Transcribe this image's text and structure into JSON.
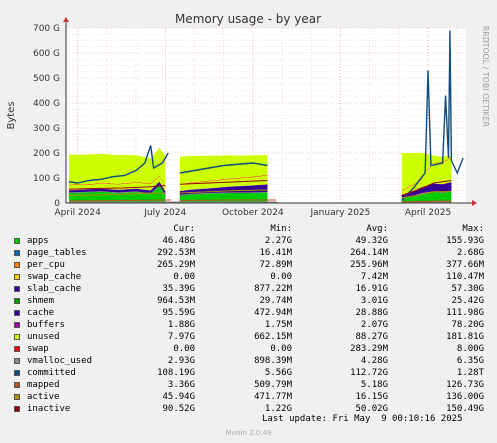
{
  "chart_data": {
    "type": "area",
    "title": "Memory usage - by year",
    "ylabel": "Bytes",
    "side_label": "RRDTOOL / TOBI OETIKER",
    "xlim": [
      2.6,
      16.3
    ],
    "ylim": [
      0,
      700
    ],
    "y_ticks": [
      {
        "v": 0,
        "label": "0"
      },
      {
        "v": 100,
        "label": "100 G"
      },
      {
        "v": 200,
        "label": "200 G"
      },
      {
        "v": 300,
        "label": "300 G"
      },
      {
        "v": 400,
        "label": "400 G"
      },
      {
        "v": 500,
        "label": "500 G"
      },
      {
        "v": 600,
        "label": "600 G"
      },
      {
        "v": 700,
        "label": "700 G"
      }
    ],
    "x_ticks": [
      {
        "at": 3,
        "label": "April 2024"
      },
      {
        "at": 6,
        "label": "July 2024"
      },
      {
        "at": 9,
        "label": "October 2024"
      },
      {
        "at": 12,
        "label": "January 2025"
      },
      {
        "at": 15,
        "label": "April 2025"
      }
    ],
    "grid": true,
    "series": [
      {
        "name": "apps",
        "kind": "stack",
        "color": "#00cc00",
        "cur": "46.48G",
        "min": "2.27G",
        "avg": "49.32G",
        "max": "155.93G",
        "points": [
          [
            2.7,
            40
          ],
          [
            3.2,
            42
          ],
          [
            3.8,
            45
          ],
          [
            4.4,
            40
          ],
          [
            5.0,
            44
          ],
          [
            5.5,
            36
          ],
          [
            5.8,
            70
          ],
          [
            6.0,
            30
          ],
          [
            6.3,
            null
          ],
          [
            6.5,
            30
          ],
          [
            6.9,
            35
          ],
          [
            7.5,
            38
          ],
          [
            8.2,
            40
          ],
          [
            8.9,
            40
          ],
          [
            9.5,
            42
          ],
          [
            9.8,
            null
          ],
          [
            14.0,
            null
          ],
          [
            14.1,
            20
          ],
          [
            14.5,
            28
          ],
          [
            14.8,
            38
          ],
          [
            15.2,
            45
          ],
          [
            15.5,
            40
          ],
          [
            15.8,
            46
          ]
        ]
      },
      {
        "name": "page_tables",
        "kind": "stack",
        "color": "#0066b3",
        "cur": "292.53M",
        "min": "16.41M",
        "avg": "264.14M",
        "max": "2.68G",
        "points": [
          [
            2.7,
            1
          ],
          [
            9.8,
            1
          ],
          [
            9.9,
            null
          ],
          [
            14.0,
            null
          ],
          [
            14.1,
            1
          ],
          [
            15.8,
            1
          ]
        ]
      },
      {
        "name": "per_cpu",
        "kind": "stack",
        "color": "#ff8000",
        "cur": "265.29M",
        "min": "72.89M",
        "avg": "255.96M",
        "max": "377.66M",
        "points": [
          [
            2.7,
            1
          ],
          [
            9.8,
            1
          ],
          [
            9.9,
            null
          ],
          [
            14.0,
            null
          ],
          [
            14.1,
            1
          ],
          [
            15.8,
            1
          ]
        ]
      },
      {
        "name": "swap_cache",
        "kind": "stack",
        "color": "#ffcc00",
        "cur": "0.00",
        "min": "0.00",
        "avg": "7.42M",
        "max": "110.47M",
        "points": [
          [
            2.7,
            0
          ],
          [
            15.8,
            0
          ]
        ]
      },
      {
        "name": "slab_cache",
        "kind": "stack",
        "color": "#330099",
        "cur": "35.39G",
        "min": "877.22M",
        "avg": "16.91G",
        "max": "57.30G",
        "points": [
          [
            2.7,
            8
          ],
          [
            3.5,
            10
          ],
          [
            4.5,
            10
          ],
          [
            5.5,
            12
          ],
          [
            6.0,
            14
          ],
          [
            6.3,
            null
          ],
          [
            6.5,
            15
          ],
          [
            7.5,
            18
          ],
          [
            8.5,
            25
          ],
          [
            9.5,
            30
          ],
          [
            9.8,
            null
          ],
          [
            14.0,
            null
          ],
          [
            14.1,
            10
          ],
          [
            14.6,
            20
          ],
          [
            15.2,
            30
          ],
          [
            15.8,
            35
          ]
        ]
      },
      {
        "name": "shmem",
        "kind": "stack",
        "color": "#990099",
        "cur": "964.53M",
        "min": "29.74M",
        "avg": "3.01G",
        "max": "25.42G",
        "points": [
          [
            2.7,
            1
          ],
          [
            9.8,
            1
          ],
          [
            9.9,
            null
          ],
          [
            14.0,
            null
          ],
          [
            14.1,
            1
          ],
          [
            15.8,
            1
          ]
        ]
      },
      {
        "name": "cache",
        "kind": "stack",
        "color": "#ccff00",
        "cur": "95.59G",
        "min": "472.94M",
        "avg": "28.88G",
        "max": "111.98G",
        "points": [
          [
            2.7,
            20
          ],
          [
            3.5,
            18
          ],
          [
            4.5,
            22
          ],
          [
            5.5,
            25
          ],
          [
            6.0,
            18
          ],
          [
            6.3,
            null
          ],
          [
            6.5,
            25
          ],
          [
            7.5,
            28
          ],
          [
            8.5,
            30
          ],
          [
            9.5,
            35
          ],
          [
            9.8,
            null
          ],
          [
            14.0,
            null
          ],
          [
            14.1,
            15
          ],
          [
            14.6,
            25
          ],
          [
            15.2,
            80
          ],
          [
            15.8,
            95
          ]
        ]
      },
      {
        "name": "buffers",
        "kind": "stack",
        "color": "#ff0000",
        "cur": "1.88G",
        "min": "1.75M",
        "avg": "2.07G",
        "max": "78.20G",
        "points": [
          [
            2.7,
            2
          ],
          [
            15.8,
            2
          ]
        ]
      },
      {
        "name": "unused",
        "kind": "stack",
        "color": "#ccff00",
        "cur": "7.97G",
        "min": "662.15M",
        "avg": "88.27G",
        "max": "181.81G",
        "points": [
          [
            2.7,
            120
          ],
          [
            3.5,
            118
          ],
          [
            4.5,
            115
          ],
          [
            5.5,
            100
          ],
          [
            6.0,
            120
          ],
          [
            6.3,
            null
          ],
          [
            6.5,
            110
          ],
          [
            7.5,
            100
          ],
          [
            8.5,
            90
          ],
          [
            9.5,
            80
          ],
          [
            9.8,
            null
          ],
          [
            14.0,
            null
          ],
          [
            14.1,
            150
          ],
          [
            14.6,
            120
          ],
          [
            15.2,
            30
          ],
          [
            15.8,
            10
          ]
        ]
      },
      {
        "name": "swap",
        "kind": "stack",
        "color": "#666666",
        "cur": "0.00",
        "min": "0.00",
        "avg": "283.29M",
        "max": "8.00G",
        "points": [
          [
            2.7,
            0
          ],
          [
            15.8,
            0
          ]
        ]
      },
      {
        "name": "vmalloc_used",
        "kind": "line",
        "color": "#888888",
        "cur": "2.93G",
        "min": "898.39M",
        "avg": "4.28G",
        "max": "6.35G",
        "points": [
          [
            2.7,
            4
          ],
          [
            9.8,
            4
          ],
          [
            9.9,
            null
          ],
          [
            14.0,
            null
          ],
          [
            14.1,
            4
          ],
          [
            15.8,
            4
          ]
        ]
      },
      {
        "name": "committed",
        "kind": "line",
        "color": "#0f4c81",
        "cur": "108.19G",
        "min": "5.56G",
        "avg": "112.72G",
        "max": "1.28T",
        "points": [
          [
            2.7,
            85
          ],
          [
            3.0,
            80
          ],
          [
            3.4,
            90
          ],
          [
            3.8,
            95
          ],
          [
            4.2,
            105
          ],
          [
            4.6,
            110
          ],
          [
            5.0,
            130
          ],
          [
            5.3,
            160
          ],
          [
            5.5,
            230
          ],
          [
            5.6,
            140
          ],
          [
            5.9,
            160
          ],
          [
            6.1,
            200
          ],
          [
            6.3,
            null
          ],
          [
            6.5,
            120
          ],
          [
            7.0,
            130
          ],
          [
            7.5,
            140
          ],
          [
            8.0,
            150
          ],
          [
            8.5,
            155
          ],
          [
            9.0,
            160
          ],
          [
            9.5,
            150
          ],
          [
            9.8,
            null
          ],
          [
            14.0,
            null
          ],
          [
            14.1,
            10
          ],
          [
            14.5,
            60
          ],
          [
            14.9,
            120
          ],
          [
            15.0,
            530
          ],
          [
            15.1,
            150
          ],
          [
            15.5,
            160
          ],
          [
            15.6,
            430
          ],
          [
            15.7,
            180
          ],
          [
            15.75,
            690
          ],
          [
            15.8,
            170
          ],
          [
            16.0,
            120
          ],
          [
            16.2,
            180
          ]
        ]
      },
      {
        "name": "mapped",
        "kind": "line",
        "color": "#c05020",
        "cur": "3.36G",
        "min": "509.79M",
        "avg": "5.18G",
        "max": "126.73G",
        "points": [
          [
            2.7,
            8
          ],
          [
            4.5,
            10
          ],
          [
            6.2,
            12
          ],
          [
            6.3,
            null
          ],
          [
            6.5,
            10
          ],
          [
            8.5,
            12
          ],
          [
            9.8,
            12
          ],
          [
            9.9,
            null
          ],
          [
            14.0,
            null
          ],
          [
            14.1,
            5
          ],
          [
            15.8,
            8
          ]
        ]
      },
      {
        "name": "active",
        "kind": "line",
        "color": "#b08d00",
        "cur": "45.94G",
        "min": "471.77M",
        "avg": "16.15G",
        "max": "136.00G",
        "points": [
          [
            2.7,
            30
          ],
          [
            3.5,
            32
          ],
          [
            4.5,
            35
          ],
          [
            5.5,
            40
          ],
          [
            6.0,
            38
          ],
          [
            6.3,
            null
          ],
          [
            6.5,
            40
          ],
          [
            7.5,
            45
          ],
          [
            8.5,
            50
          ],
          [
            9.5,
            52
          ],
          [
            9.8,
            null
          ],
          [
            14.0,
            null
          ],
          [
            14.1,
            20
          ],
          [
            14.6,
            30
          ],
          [
            15.2,
            45
          ],
          [
            15.8,
            46
          ]
        ]
      },
      {
        "name": "inactive",
        "kind": "line",
        "color": "#990000",
        "cur": "90.52G",
        "min": "1.22G",
        "avg": "50.02G",
        "max": "150.49G",
        "points": [
          [
            2.7,
            55
          ],
          [
            3.5,
            58
          ],
          [
            4.5,
            60
          ],
          [
            5.5,
            65
          ],
          [
            6.0,
            70
          ],
          [
            6.3,
            null
          ],
          [
            6.5,
            75
          ],
          [
            7.5,
            80
          ],
          [
            8.5,
            85
          ],
          [
            9.5,
            90
          ],
          [
            9.8,
            null
          ],
          [
            14.0,
            null
          ],
          [
            14.1,
            30
          ],
          [
            14.6,
            50
          ],
          [
            15.2,
            80
          ],
          [
            15.8,
            90
          ]
        ]
      }
    ]
  },
  "legend": {
    "headers": {
      "cur": "Cur:",
      "min": "Min:",
      "avg": "Avg:",
      "max": "Max:"
    }
  },
  "footer": {
    "last_update": "Last update: Fri May  9 00:10:16 2025",
    "munin": "Munin 2.0.49"
  }
}
